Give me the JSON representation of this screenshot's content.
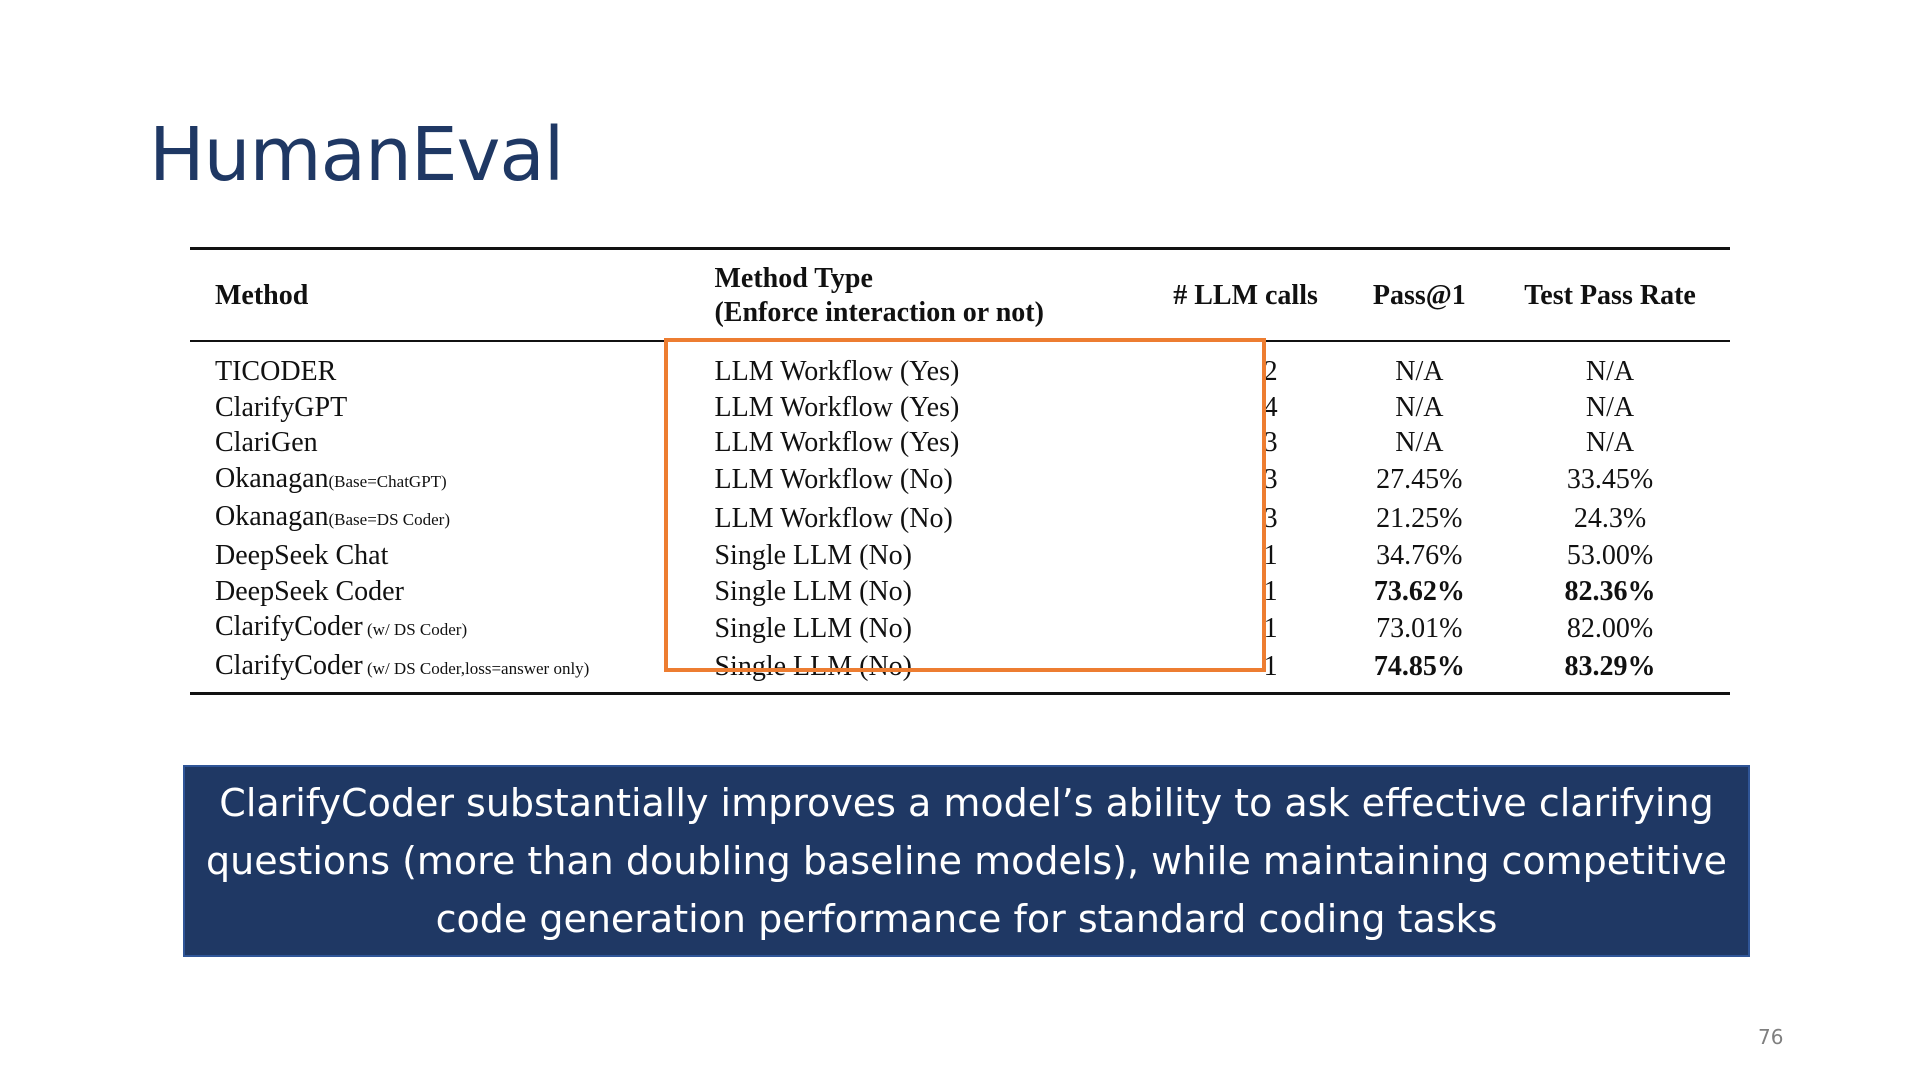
{
  "title": "HumanEval",
  "table": {
    "headers": {
      "method": "Method",
      "method_type_line1": "Method Type",
      "method_type_line2": "(Enforce interaction or not)",
      "llm_calls": "# LLM calls",
      "pass_at_1": "Pass@1",
      "test_pass_rate": "Test Pass Rate"
    },
    "rows": [
      {
        "method": "TICODER",
        "sub": "",
        "type": "LLM Workflow (Yes)",
        "calls": "2",
        "pass1": "N/A",
        "tpr": "N/A",
        "bold_pass1": false,
        "bold_tpr": false
      },
      {
        "method": "ClarifyGPT",
        "sub": "",
        "type": "LLM Workflow (Yes)",
        "calls": "4",
        "pass1": "N/A",
        "tpr": "N/A",
        "bold_pass1": false,
        "bold_tpr": false
      },
      {
        "method": "ClariGen",
        "sub": "",
        "type": "LLM Workflow (Yes)",
        "calls": "3",
        "pass1": "N/A",
        "tpr": "N/A",
        "bold_pass1": false,
        "bold_tpr": false
      },
      {
        "method": "Okanagan",
        "sub": "(Base=ChatGPT)",
        "type": "LLM Workflow (No)",
        "calls": "3",
        "pass1": "27.45%",
        "tpr": "33.45%",
        "bold_pass1": false,
        "bold_tpr": false
      },
      {
        "method": "Okanagan",
        "sub": "(Base=DS Coder)",
        "type": "LLM Workflow (No)",
        "calls": "3",
        "pass1": "21.25%",
        "tpr": "24.3%",
        "bold_pass1": false,
        "bold_tpr": false
      },
      {
        "method": "DeepSeek Chat",
        "sub": "",
        "type": "Single LLM (No)",
        "calls": "1",
        "pass1": "34.76%",
        "tpr": "53.00%",
        "bold_pass1": false,
        "bold_tpr": false
      },
      {
        "method": "DeepSeek Coder",
        "sub": "",
        "type": "Single LLM (No)",
        "calls": "1",
        "pass1": "73.62%",
        "tpr": "82.36%",
        "bold_pass1": true,
        "bold_tpr": true
      },
      {
        "method": "ClarifyCoder",
        "sub": " (w/ DS Coder)",
        "type": "Single LLM (No)",
        "calls": "1",
        "pass1": "73.01%",
        "tpr": "82.00%",
        "bold_pass1": false,
        "bold_tpr": false
      },
      {
        "method": "ClarifyCoder",
        "sub": " (w/ DS Coder,loss=answer only)",
        "type": "Single LLM (No)",
        "calls": "1",
        "pass1": "74.85%",
        "tpr": "83.29%",
        "bold_pass1": true,
        "bold_tpr": true
      }
    ]
  },
  "callout": "ClarifyCoder substantially improves a model’s ability to ask effective clarifying questions (more than doubling baseline models), while maintaining competitive code generation performance for standard coding tasks",
  "page_number": "76",
  "colors": {
    "title": "#1f3864",
    "callout_bg": "#1f3864",
    "highlight_border": "#ed7d31",
    "page_number": "#7f7f7f"
  }
}
